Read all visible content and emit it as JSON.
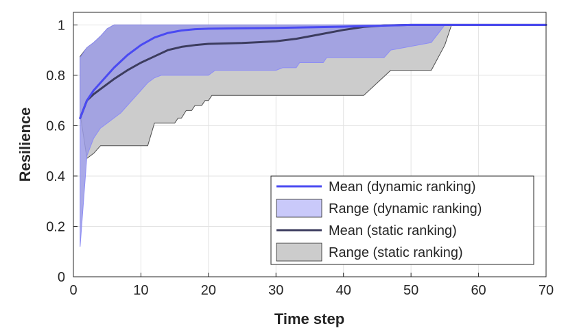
{
  "chart_data": {
    "type": "line",
    "xlabel": "Time step",
    "ylabel": "Resilience",
    "xlim": [
      0,
      70
    ],
    "ylim": [
      0,
      1.05
    ],
    "xticks": [
      0,
      10,
      20,
      30,
      40,
      50,
      60,
      70
    ],
    "yticks": [
      0,
      0.2,
      0.4,
      0.6,
      0.8,
      1
    ],
    "ytick_labels": [
      "0",
      "0.2",
      "0.4",
      "0.6",
      "0.8",
      "1"
    ],
    "grid": true,
    "legend_position": "bottom-right",
    "legend": [
      {
        "label": "Mean (dynamic ranking)",
        "kind": "line",
        "color": "#4a4af2"
      },
      {
        "label": "Range (dynamic ranking)",
        "kind": "patch",
        "color": "#c9c9fa"
      },
      {
        "label": "Mean (static ranking)",
        "kind": "line",
        "color": "#3c3c5e"
      },
      {
        "label": "Range (static ranking)",
        "kind": "patch",
        "color": "#cccccc"
      }
    ],
    "series": [
      {
        "name": "Range (static ranking)",
        "kind": "band",
        "fill": "#cccccc",
        "stroke": "#4d4d4d",
        "upper": [
          [
            1,
            0.875
          ],
          [
            2,
            0.91
          ],
          [
            3,
            0.93
          ],
          [
            4,
            0.955
          ],
          [
            5,
            0.985
          ],
          [
            6,
            1
          ],
          [
            56,
            1
          ],
          [
            70,
            1
          ]
        ],
        "lower": [
          [
            1,
            0.63
          ],
          [
            1.1,
            0.63
          ],
          [
            2,
            0.47
          ],
          [
            3,
            0.49
          ],
          [
            4,
            0.52
          ],
          [
            11,
            0.52
          ],
          [
            12,
            0.61
          ],
          [
            15,
            0.61
          ],
          [
            15.5,
            0.63
          ],
          [
            16,
            0.63
          ],
          [
            16.7,
            0.66
          ],
          [
            17.5,
            0.66
          ],
          [
            18,
            0.68
          ],
          [
            19,
            0.68
          ],
          [
            19.5,
            0.7
          ],
          [
            20,
            0.7
          ],
          [
            20.5,
            0.72
          ],
          [
            43,
            0.72
          ],
          [
            47,
            0.82
          ],
          [
            53,
            0.82
          ],
          [
            55,
            0.92
          ],
          [
            56,
            1
          ],
          [
            70,
            1
          ]
        ]
      },
      {
        "name": "Range (dynamic ranking)",
        "kind": "band",
        "fill": "#9b9be4",
        "fill_opacity": 0.85,
        "stroke": "#8d8df5",
        "upper": [
          [
            1,
            0.87
          ],
          [
            2,
            0.91
          ],
          [
            3,
            0.93
          ],
          [
            4,
            0.955
          ],
          [
            5,
            0.985
          ],
          [
            6,
            1
          ],
          [
            55,
            1
          ]
        ],
        "lower": [
          [
            1,
            0.12
          ],
          [
            2,
            0.48
          ],
          [
            3,
            0.55
          ],
          [
            4,
            0.59
          ],
          [
            5,
            0.61
          ],
          [
            6,
            0.63
          ],
          [
            7,
            0.65
          ],
          [
            8,
            0.68
          ],
          [
            9,
            0.71
          ],
          [
            10,
            0.74
          ],
          [
            11,
            0.77
          ],
          [
            12,
            0.79
          ],
          [
            13,
            0.8
          ],
          [
            20,
            0.8
          ],
          [
            21,
            0.82
          ],
          [
            30,
            0.82
          ],
          [
            31,
            0.83
          ],
          [
            33,
            0.83
          ],
          [
            33.5,
            0.85
          ],
          [
            37,
            0.85
          ],
          [
            37.5,
            0.87
          ],
          [
            46,
            0.87
          ],
          [
            47,
            0.9
          ],
          [
            53,
            0.93
          ],
          [
            55,
            1
          ]
        ]
      },
      {
        "name": "Mean (static ranking)",
        "kind": "line",
        "color": "#3c3c5e",
        "points": [
          [
            1,
            0.63
          ],
          [
            2,
            0.7
          ],
          [
            3,
            0.725
          ],
          [
            4,
            0.745
          ],
          [
            6,
            0.785
          ],
          [
            8,
            0.82
          ],
          [
            10,
            0.85
          ],
          [
            12,
            0.875
          ],
          [
            14,
            0.9
          ],
          [
            16,
            0.913
          ],
          [
            18,
            0.92
          ],
          [
            20,
            0.925
          ],
          [
            25,
            0.928
          ],
          [
            30,
            0.935
          ],
          [
            33,
            0.945
          ],
          [
            36,
            0.96
          ],
          [
            40,
            0.98
          ],
          [
            43,
            0.992
          ],
          [
            46,
            0.998
          ],
          [
            50,
            1
          ],
          [
            70,
            1
          ]
        ]
      },
      {
        "name": "Mean (dynamic ranking)",
        "kind": "line",
        "color": "#4a4af2",
        "points": [
          [
            1,
            0.63
          ],
          [
            2,
            0.7
          ],
          [
            3,
            0.74
          ],
          [
            4,
            0.77
          ],
          [
            6,
            0.83
          ],
          [
            8,
            0.88
          ],
          [
            10,
            0.92
          ],
          [
            12,
            0.95
          ],
          [
            14,
            0.968
          ],
          [
            16,
            0.978
          ],
          [
            18,
            0.983
          ],
          [
            20,
            0.985
          ],
          [
            25,
            0.987
          ],
          [
            30,
            0.988
          ],
          [
            40,
            0.993
          ],
          [
            50,
            1
          ],
          [
            70,
            1
          ]
        ]
      }
    ]
  }
}
